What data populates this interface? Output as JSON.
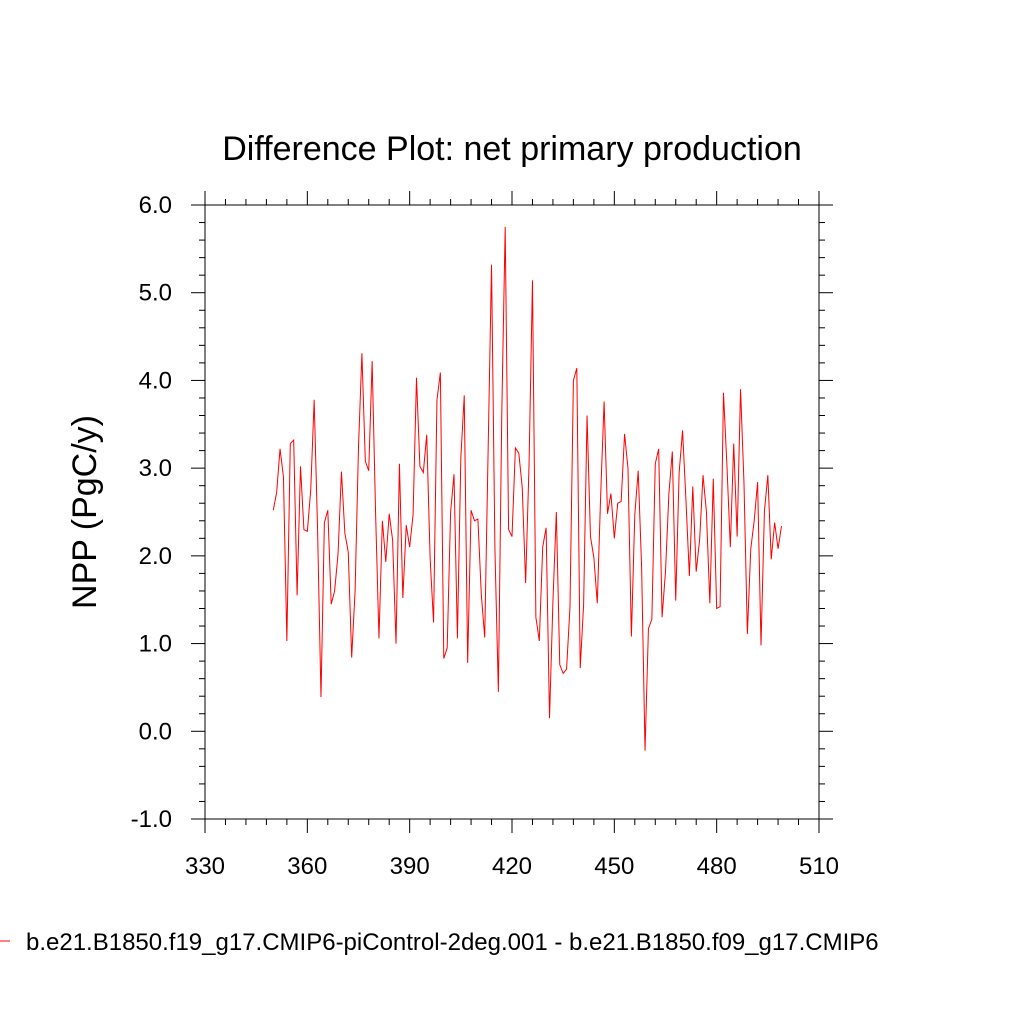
{
  "chart_data": {
    "type": "line",
    "title": "Difference Plot: net primary production",
    "xlabel": "",
    "ylabel": "NPP  (PgC/y)",
    "xlim": [
      330,
      510
    ],
    "ylim": [
      -1.0,
      6.0
    ],
    "x_ticks": [
      "330",
      "360",
      "390",
      "420",
      "450",
      "480",
      "510"
    ],
    "y_ticks": [
      "-1.0",
      "0.0",
      "1.0",
      "2.0",
      "3.0",
      "4.0",
      "5.0",
      "6.0"
    ],
    "grid": false,
    "legend": "bottom",
    "series": [
      {
        "name": "b.e21.B1850.f19_g17.CMIP6-piControl-2deg.001 - b.e21.B1850.f09_g17.CMIP6",
        "color": "#ff0000",
        "x_start": 350,
        "x_step": 1,
        "values": [
          2.52,
          2.72,
          3.22,
          2.9,
          1.03,
          3.28,
          3.32,
          1.55,
          3.02,
          2.3,
          2.28,
          2.75,
          3.78,
          2.3,
          0.39,
          2.38,
          2.52,
          1.45,
          1.6,
          2.02,
          2.96,
          2.26,
          2.04,
          0.84,
          1.6,
          3.24,
          4.31,
          3.08,
          2.97,
          4.22,
          2.5,
          1.06,
          2.4,
          1.93,
          2.48,
          2.18,
          1.0,
          3.05,
          1.52,
          2.35,
          2.1,
          2.47,
          4.03,
          3.02,
          2.95,
          3.38,
          1.97,
          1.24,
          3.78,
          4.09,
          0.83,
          0.95,
          2.5,
          2.93,
          1.06,
          3.12,
          3.83,
          0.78,
          2.52,
          2.4,
          2.42,
          1.56,
          1.07,
          3.2,
          5.32,
          2.07,
          0.45,
          3.62,
          5.75,
          2.3,
          2.22,
          3.23,
          3.17,
          2.78,
          1.69,
          3.05,
          5.14,
          1.3,
          1.03,
          2.1,
          2.32,
          0.15,
          1.48,
          2.5,
          0.76,
          0.66,
          0.71,
          1.42,
          4.0,
          4.14,
          0.72,
          1.45,
          3.6,
          2.22,
          1.98,
          1.46,
          2.7,
          3.76,
          2.48,
          2.71,
          2.2,
          2.6,
          2.62,
          3.39,
          3.0,
          1.08,
          2.47,
          2.97,
          1.87,
          -0.22,
          1.17,
          1.28,
          3.05,
          3.22,
          1.3,
          1.82,
          2.71,
          3.19,
          1.49,
          2.95,
          3.43,
          2.63,
          1.77,
          2.79,
          1.82,
          2.18,
          2.92,
          2.5,
          1.46,
          2.88,
          1.4,
          1.42,
          3.86,
          3.04,
          2.1,
          3.28,
          2.22,
          3.9,
          2.84,
          1.11,
          2.08,
          2.4,
          2.84,
          0.98,
          2.51,
          2.92,
          1.96,
          2.38,
          2.08,
          2.34
        ]
      }
    ]
  }
}
